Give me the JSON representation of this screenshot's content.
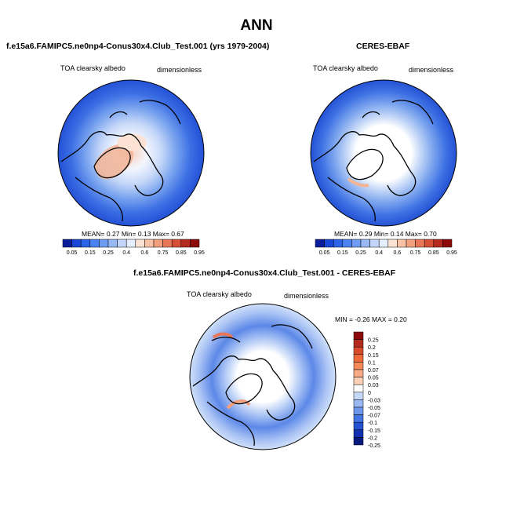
{
  "title": "ANN",
  "panels": [
    {
      "title": "f.e15a6.FAMIPC5.ne0np4-Conus30x4.Club_Test.001 (yrs 1979-2004)",
      "variable": "TOA clearsky albedo",
      "units": "dimensionless",
      "stats": {
        "mean_label": "MEAN=",
        "mean": "0.27",
        "min_label": "Min=",
        "min": "0.13",
        "max_label": "Max=",
        "max": "0.67"
      },
      "colorbar_labels": [
        "0.05",
        "0.15",
        "0.25",
        "0.4",
        "0.6",
        "0.75",
        "0.85",
        "0.95"
      ]
    },
    {
      "title": "CERES-EBAF",
      "variable": "TOA clearsky albedo",
      "units": "dimensionless",
      "stats": {
        "mean_label": "MEAN=",
        "mean": "0.29",
        "min_label": "Min=",
        "min": "0.14",
        "max_label": "Max=",
        "max": "0.70"
      },
      "colorbar_labels": [
        "0.05",
        "0.15",
        "0.25",
        "0.4",
        "0.6",
        "0.75",
        "0.85",
        "0.95"
      ]
    },
    {
      "title": "f.e15a6.FAMIPC5.ne0np4-Conus30x4.Club_Test.001 - CERES-EBAF",
      "variable": "TOA clearsky albedo",
      "units": "dimensionless",
      "stats": {
        "min_label": "MIN =",
        "min": "-0.26",
        "max_label": "MAX =",
        "max": "0.20"
      },
      "colorbar_labels": [
        "0.25",
        "0.2",
        "0.15",
        "0.1",
        "0.07",
        "0.05",
        "0.03",
        "0",
        "-0.03",
        "-0.05",
        "-0.07",
        "-0.1",
        "-0.15",
        "-0.2",
        "-0.25"
      ]
    }
  ],
  "colors": {
    "abs_scale": [
      "#0a1e9c",
      "#1a46d6",
      "#2c64e8",
      "#4a82f0",
      "#6e9cf2",
      "#98b9f4",
      "#c3d5f8",
      "#e6efff",
      "#fbe2d2",
      "#f7c2a6",
      "#f29f7d",
      "#e8775a",
      "#d65038",
      "#b52a1e",
      "#8c0a0a"
    ],
    "diff_scale": [
      "#8c0a0a",
      "#b52a1e",
      "#d94a2c",
      "#ee6a3a",
      "#f68a5a",
      "#f8ab86",
      "#fbd0b6",
      "#ffffff",
      "#c6d8f8",
      "#9ab8f3",
      "#6e96ec",
      "#4274e2",
      "#2450d2",
      "#1230b0",
      "#081a80"
    ]
  }
}
